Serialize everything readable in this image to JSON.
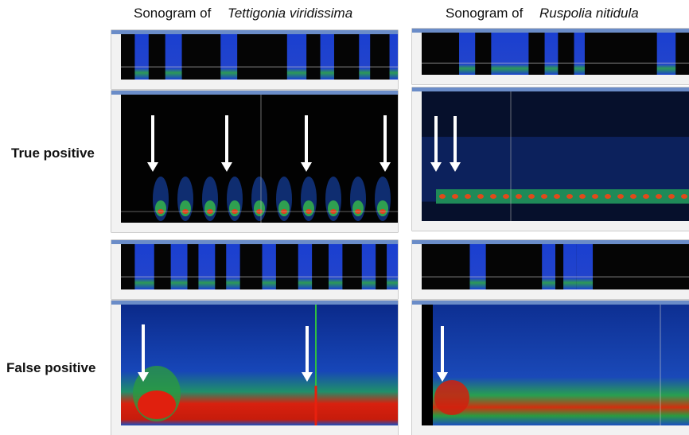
{
  "columns": [
    {
      "prefix": "Sonogram of",
      "species": "Tettigonia viridissima"
    },
    {
      "prefix": "Sonogram of",
      "species": "Ruspolia nitidula"
    }
  ],
  "rows": [
    {
      "label": "True positive"
    },
    {
      "label": "False positive"
    }
  ]
}
